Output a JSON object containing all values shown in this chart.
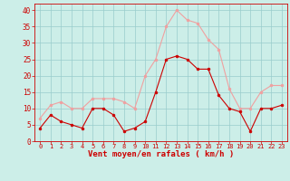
{
  "hours": [
    0,
    1,
    2,
    3,
    4,
    5,
    6,
    7,
    8,
    9,
    10,
    11,
    12,
    13,
    14,
    15,
    16,
    17,
    18,
    19,
    20,
    21,
    22,
    23
  ],
  "wind_avg": [
    4,
    8,
    6,
    5,
    4,
    10,
    10,
    8,
    3,
    4,
    6,
    15,
    25,
    26,
    25,
    22,
    22,
    14,
    10,
    9,
    3,
    10,
    10,
    11
  ],
  "wind_gust": [
    7,
    11,
    12,
    10,
    10,
    13,
    13,
    13,
    12,
    10,
    20,
    25,
    35,
    40,
    37,
    36,
    31,
    28,
    16,
    10,
    10,
    15,
    17,
    17
  ],
  "line_avg_color": "#cc0000",
  "line_gust_color": "#f0a0a0",
  "marker_avg_color": "#cc0000",
  "marker_gust_color": "#f0a0a0",
  "bg_color": "#cceee8",
  "grid_color": "#99cccc",
  "axis_label_color": "#cc0000",
  "tick_color": "#cc0000",
  "xlabel": "Vent moyen/en rafales ( km/h )",
  "ylim": [
    0,
    42
  ],
  "yticks": [
    0,
    5,
    10,
    15,
    20,
    25,
    30,
    35,
    40
  ],
  "xlim": [
    -0.5,
    23.5
  ]
}
